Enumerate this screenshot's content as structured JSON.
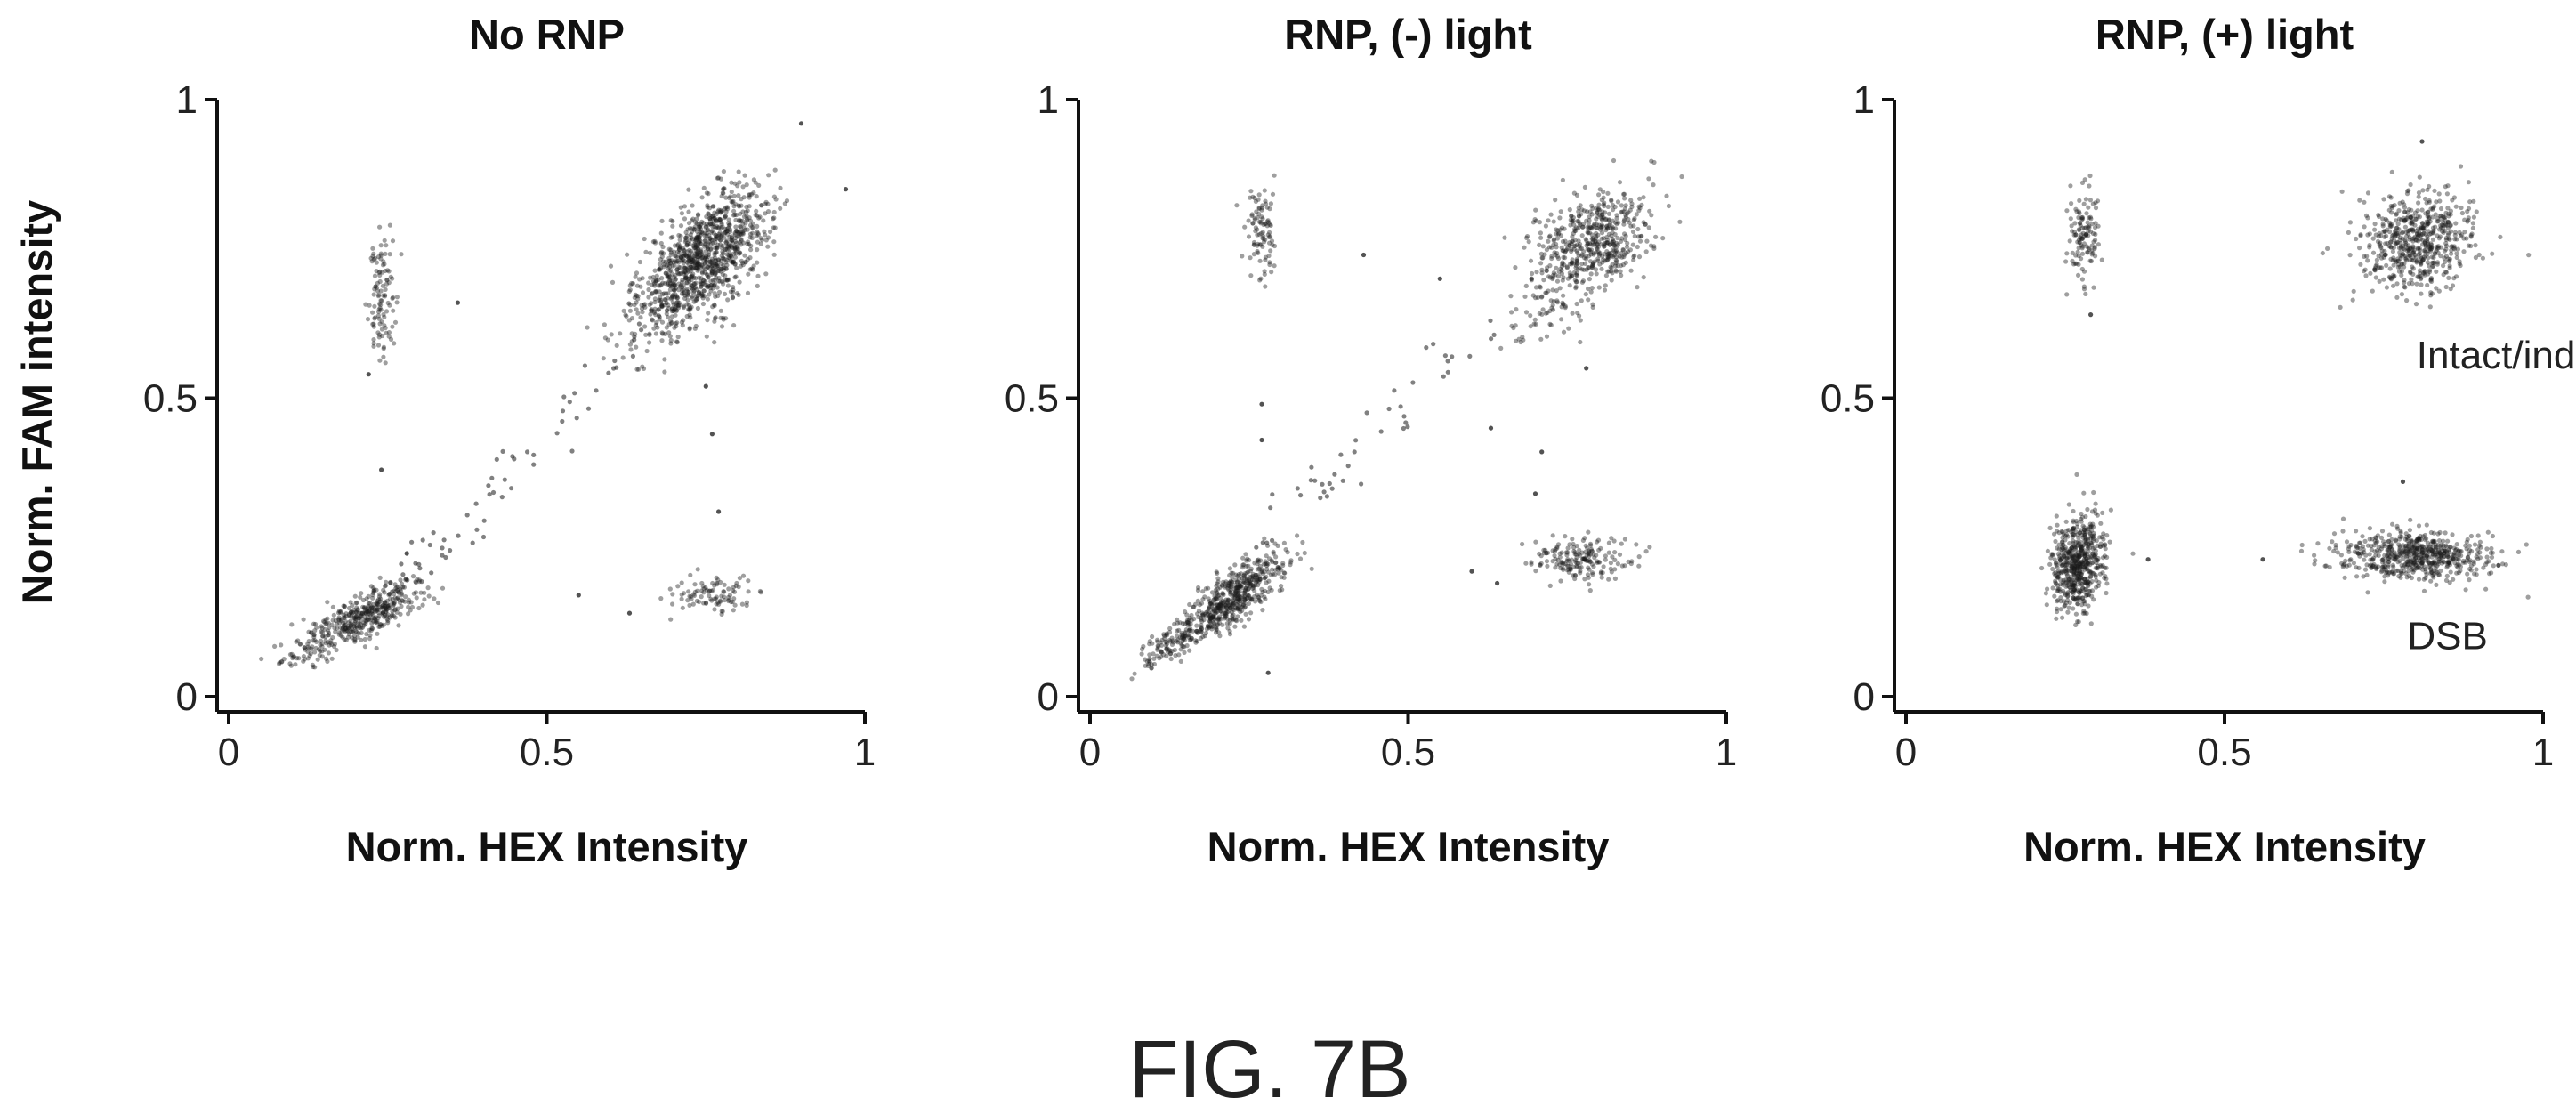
{
  "figure_caption": "FIG. 7B",
  "chart_data": [
    {
      "type": "scatter",
      "title": "No RNP",
      "xlabel": "Norm. HEX Intensity",
      "ylabel": "Norm. FAM intensity",
      "xlim": [
        0,
        1
      ],
      "ylim": [
        0,
        1
      ],
      "xticks": [
        "0",
        "0.5",
        "1"
      ],
      "yticks": [
        "0",
        "0.5",
        "1"
      ],
      "grid": false,
      "annotations": [],
      "clusters": [
        {
          "x": 0.75,
          "y": 0.74,
          "n": 950,
          "sx": 0.05,
          "sy": 0.055,
          "rho": 0.55
        },
        {
          "x": 0.7,
          "y": 0.66,
          "n": 130,
          "sx": 0.05,
          "sy": 0.045,
          "rho": 0.6
        },
        {
          "x": 0.22,
          "y": 0.14,
          "n": 380,
          "sx": 0.045,
          "sy": 0.028,
          "rho": 0.7
        },
        {
          "x": 0.13,
          "y": 0.08,
          "n": 70,
          "sx": 0.03,
          "sy": 0.02,
          "rho": 0.6
        },
        {
          "x": 0.24,
          "y": 0.67,
          "n": 110,
          "sx": 0.01,
          "sy": 0.05,
          "rho": 0
        },
        {
          "x": 0.76,
          "y": 0.17,
          "n": 95,
          "sx": 0.035,
          "sy": 0.015,
          "rho": 0
        }
      ],
      "line": {
        "x0": 0.25,
        "y0": 0.17,
        "x1": 0.72,
        "y1": 0.68,
        "n": 70,
        "jitter": 0.02
      },
      "outliers": [
        [
          0.97,
          0.85
        ],
        [
          0.9,
          0.96
        ],
        [
          0.76,
          0.44
        ],
        [
          0.77,
          0.31
        ],
        [
          0.55,
          0.17
        ],
        [
          0.63,
          0.14
        ],
        [
          0.36,
          0.66
        ],
        [
          0.24,
          0.38
        ],
        [
          0.28,
          0.24
        ],
        [
          0.22,
          0.54
        ],
        [
          0.75,
          0.52
        ]
      ]
    },
    {
      "type": "scatter",
      "title": "RNP, (-) light",
      "xlabel": "Norm. HEX Intensity",
      "ylabel": "",
      "xlim": [
        0,
        1
      ],
      "ylim": [
        0,
        1
      ],
      "xticks": [
        "0",
        "0.5",
        "1"
      ],
      "yticks": [
        "0",
        "0.5",
        "1"
      ],
      "grid": false,
      "annotations": [],
      "clusters": [
        {
          "x": 0.79,
          "y": 0.76,
          "n": 520,
          "sx": 0.045,
          "sy": 0.045,
          "rho": 0.3
        },
        {
          "x": 0.72,
          "y": 0.66,
          "n": 70,
          "sx": 0.04,
          "sy": 0.04,
          "rho": 0.5
        },
        {
          "x": 0.23,
          "y": 0.17,
          "n": 520,
          "sx": 0.04,
          "sy": 0.035,
          "rho": 0.75
        },
        {
          "x": 0.13,
          "y": 0.09,
          "n": 120,
          "sx": 0.025,
          "sy": 0.02,
          "rho": 0.7
        },
        {
          "x": 0.27,
          "y": 0.78,
          "n": 95,
          "sx": 0.012,
          "sy": 0.04,
          "rho": 0
        },
        {
          "x": 0.77,
          "y": 0.23,
          "n": 180,
          "sx": 0.035,
          "sy": 0.017,
          "rho": 0
        }
      ],
      "line": {
        "x0": 0.28,
        "y0": 0.26,
        "x1": 0.62,
        "y1": 0.62,
        "n": 45,
        "jitter": 0.025
      },
      "outliers": [
        [
          0.28,
          0.04
        ],
        [
          0.27,
          0.49
        ],
        [
          0.43,
          0.74
        ],
        [
          0.55,
          0.7
        ],
        [
          0.7,
          0.34
        ],
        [
          0.64,
          0.19
        ],
        [
          0.63,
          0.45
        ],
        [
          0.71,
          0.41
        ],
        [
          0.6,
          0.21
        ],
        [
          0.27,
          0.43
        ],
        [
          0.78,
          0.55
        ]
      ]
    },
    {
      "type": "scatter",
      "title": "RNP, (+) light",
      "xlabel": "Norm. HEX Intensity",
      "ylabel": "",
      "xlim": [
        0,
        1
      ],
      "ylim": [
        0,
        1
      ],
      "xticks": [
        "0",
        "0.5",
        "1"
      ],
      "yticks": [
        "0",
        "0.5",
        "1"
      ],
      "grid": false,
      "annotations": [
        {
          "text": "Intact/indel",
          "x": 0.95,
          "y": 0.55
        },
        {
          "text": "DSB",
          "x": 0.85,
          "y": 0.08
        }
      ],
      "clusters": [
        {
          "x": 0.8,
          "y": 0.76,
          "n": 580,
          "sx": 0.045,
          "sy": 0.04,
          "rho": 0.1
        },
        {
          "x": 0.27,
          "y": 0.22,
          "n": 560,
          "sx": 0.022,
          "sy": 0.04,
          "rho": 0.2
        },
        {
          "x": 0.28,
          "y": 0.77,
          "n": 120,
          "sx": 0.012,
          "sy": 0.04,
          "rho": 0
        },
        {
          "x": 0.8,
          "y": 0.235,
          "n": 580,
          "sx": 0.06,
          "sy": 0.02,
          "rho": -0.1
        }
      ],
      "line": null,
      "outliers": [
        [
          0.81,
          0.93
        ],
        [
          0.78,
          0.36
        ],
        [
          0.56,
          0.23
        ],
        [
          0.38,
          0.23
        ],
        [
          0.29,
          0.64
        ],
        [
          0.93,
          0.22
        ],
        [
          0.71,
          0.24
        ]
      ]
    }
  ]
}
